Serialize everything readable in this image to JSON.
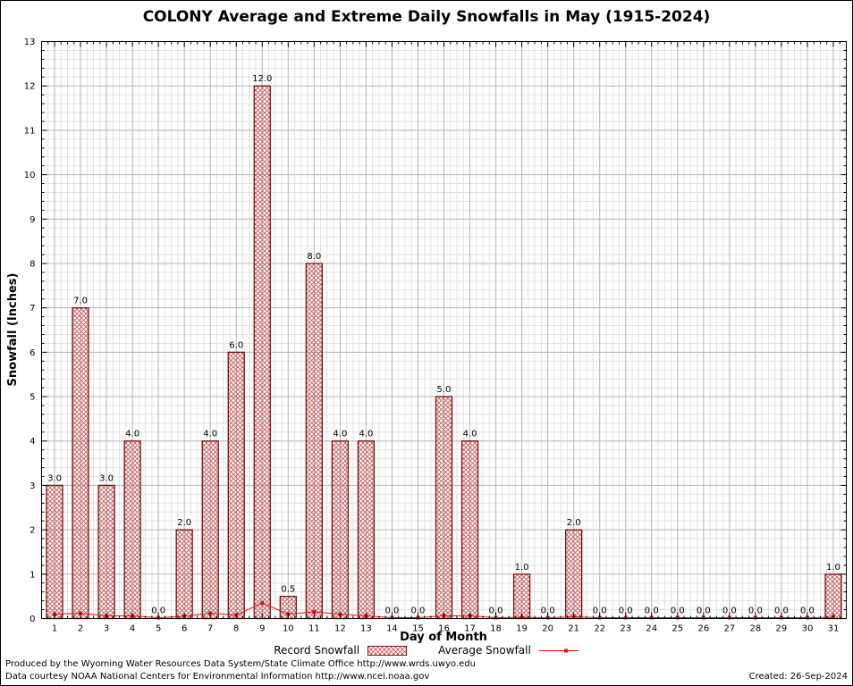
{
  "title": "COLONY Average and Extreme Daily Snowfalls in May (1915-2024)",
  "axes": {
    "xlabel": "Day of Month",
    "ylabel": "Snowfall (Inches)"
  },
  "legend": {
    "record_label": "Record Snowfall",
    "average_label": "Average Snowfall"
  },
  "footer": {
    "line1": "Produced by the Wyoming Water Resources Data System/State Climate Office http://www.wrds.uwyo.edu",
    "line2": "Data courtesy NOAA National Centers for Environmental Information http://www.ncei.noaa.gov",
    "created": "Created: 26-Sep-2024"
  },
  "colors": {
    "bar_edge": "#7f1010",
    "bar_hatch": "#c75b5b",
    "avg_line": "#e01010",
    "grid_major": "#b5b5b5",
    "grid_minor": "#e2e2e2",
    "axis": "#000000"
  },
  "chart_data": {
    "type": "bar",
    "title": "COLONY Average and Extreme Daily Snowfalls in May (1915-2024)",
    "xlabel": "Day of Month",
    "ylabel": "Snowfall (Inches)",
    "ylim": [
      0,
      13
    ],
    "xlim": [
      0.5,
      31.5
    ],
    "grid": true,
    "legend_position": "bottom",
    "x": [
      1,
      2,
      3,
      4,
      5,
      6,
      7,
      8,
      9,
      10,
      11,
      12,
      13,
      14,
      15,
      16,
      17,
      18,
      19,
      20,
      21,
      22,
      23,
      24,
      25,
      26,
      27,
      28,
      29,
      30,
      31
    ],
    "yticks": [
      0,
      1,
      2,
      3,
      4,
      5,
      6,
      7,
      8,
      9,
      10,
      11,
      12,
      13
    ],
    "series": [
      {
        "name": "Record Snowfall",
        "type": "bar",
        "values": [
          3,
          7,
          3,
          4,
          0,
          2,
          4,
          6,
          12,
          0.5,
          8,
          4,
          4,
          0,
          0,
          5,
          4,
          0,
          1,
          0,
          2,
          0,
          0,
          0,
          0,
          0,
          0,
          0,
          0,
          0,
          1
        ]
      },
      {
        "name": "Average Snowfall",
        "type": "line",
        "values": [
          0.1,
          0.12,
          0.06,
          0.06,
          0.02,
          0.05,
          0.12,
          0.08,
          0.35,
          0.1,
          0.15,
          0.1,
          0.06,
          0.02,
          0.02,
          0.06,
          0.06,
          0.02,
          0.03,
          0.02,
          0.04,
          0.02,
          0.02,
          0.02,
          0.02,
          0.02,
          0.02,
          0.02,
          0.02,
          0.02,
          0.03
        ]
      }
    ],
    "bar_labels": [
      "3.0",
      "7.0",
      "3.0",
      "4.0",
      "0.0",
      "2.0",
      "4.0",
      "6.0",
      "12.0",
      "0.5",
      "8.0",
      "4.0",
      "4.0",
      "0.0",
      "0.0",
      "5.0",
      "4.0",
      "0.0",
      "1.0",
      "0.0",
      "2.0",
      "0.0",
      "0.0",
      "0.0",
      "0.0",
      "0.0",
      "0.0",
      "0.0",
      "0.0",
      "0.0",
      "1.0"
    ]
  }
}
